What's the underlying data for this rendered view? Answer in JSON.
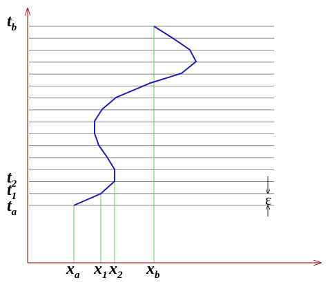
{
  "time_labels": [
    {
      "main": "t",
      "sub": "b"
    },
    {
      "main": "t",
      "sub": "2"
    },
    {
      "main": "t",
      "sub": "1"
    },
    {
      "main": "t",
      "sub": "a"
    }
  ],
  "space_labels": [
    {
      "main": "x",
      "sub": "a"
    },
    {
      "main": "x",
      "sub": "1"
    },
    {
      "main": "x",
      "sub": "2"
    },
    {
      "main": "x",
      "sub": "b"
    }
  ],
  "epsilon_label": "ε"
}
